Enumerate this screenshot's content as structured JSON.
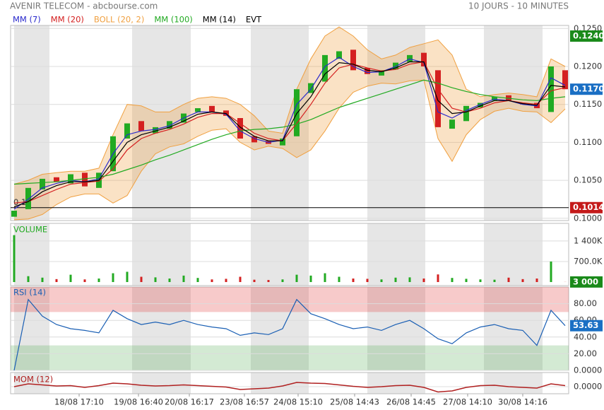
{
  "chart_data": {
    "type": "candlestick",
    "title": "AVENIR TELECOM - abcbourse.com",
    "subtitle": "10 JOURS - 10 MINUTES",
    "ylim": [
      0.0997,
      0.1254
    ],
    "yticks": [
      {
        "value": 0.125,
        "label": "0.1250"
      },
      {
        "value": 0.12,
        "label": "0.1200"
      },
      {
        "value": 0.115,
        "label": "0.1150"
      },
      {
        "value": 0.11,
        "label": "0.1100"
      },
      {
        "value": 0.105,
        "label": "0.1050"
      },
      {
        "value": 0.1,
        "label": "0.1000"
      }
    ],
    "xticks": [
      {
        "value": 4.6,
        "label": "18/08 17:10"
      },
      {
        "value": 8.8,
        "label": "19/08 16:40"
      },
      {
        "value": 12.4,
        "label": "20/08 16:17"
      },
      {
        "value": 16.3,
        "label": "23/08 16:57"
      },
      {
        "value": 20.1,
        "label": "24/08 15:10"
      },
      {
        "value": 24.1,
        "label": "25/08 14:43"
      },
      {
        "value": 28.1,
        "label": "26/08 14:45"
      },
      {
        "value": 32.1,
        "label": "27/08 14:10"
      },
      {
        "value": 36.0,
        "label": "30/08 14:16"
      }
    ],
    "up_color": "#22aa22",
    "down_color": "#d42020",
    "open": [
      0.1002,
      0.1012,
      0.1038,
      0.1054,
      0.1046,
      0.106,
      0.104,
      0.1062,
      0.1105,
      0.1128,
      0.1112,
      0.1118,
      0.1126,
      0.114,
      0.1148,
      0.1142,
      0.1132,
      0.1108,
      0.1102,
      0.1096,
      0.1108,
      0.1165,
      0.118,
      0.121,
      0.1222,
      0.1198,
      0.1188,
      0.1196,
      0.1206,
      0.1218,
      0.1195,
      0.1118,
      0.1128,
      0.1146,
      0.1155,
      0.1162,
      0.1152,
      0.1152,
      0.114,
      0.1195
    ],
    "close": [
      0.101,
      0.104,
      0.1052,
      0.1048,
      0.1058,
      0.1042,
      0.106,
      0.1108,
      0.1125,
      0.1115,
      0.112,
      0.1128,
      0.1138,
      0.1145,
      0.114,
      0.1135,
      0.1105,
      0.11,
      0.1098,
      0.1105,
      0.117,
      0.1178,
      0.1215,
      0.122,
      0.1195,
      0.119,
      0.1195,
      0.1205,
      0.1215,
      0.12,
      0.112,
      0.113,
      0.1148,
      0.1152,
      0.116,
      0.1155,
      0.115,
      0.1145,
      0.12,
      0.117
    ],
    "series": [
      {
        "name": "MM (7)",
        "color": "#2a2acc",
        "values": [
          0.1012,
          0.1025,
          0.104,
          0.1046,
          0.105,
          0.1048,
          0.1052,
          0.1085,
          0.111,
          0.1115,
          0.1117,
          0.1122,
          0.1132,
          0.114,
          0.114,
          0.1137,
          0.1115,
          0.1105,
          0.11,
          0.1103,
          0.115,
          0.117,
          0.12,
          0.1212,
          0.12,
          0.1192,
          0.1193,
          0.12,
          0.121,
          0.1205,
          0.114,
          0.1132,
          0.1142,
          0.115,
          0.1157,
          0.1155,
          0.115,
          0.1148,
          0.1185,
          0.1175
        ]
      },
      {
        "name": "MM (20)",
        "color": "#d42020",
        "values": [
          0.102,
          0.1022,
          0.103,
          0.1038,
          0.1045,
          0.1047,
          0.1049,
          0.1065,
          0.109,
          0.1105,
          0.1112,
          0.1117,
          0.1124,
          0.1133,
          0.1138,
          0.1138,
          0.1125,
          0.1112,
          0.1105,
          0.1102,
          0.1125,
          0.115,
          0.1178,
          0.1198,
          0.1203,
          0.1198,
          0.1194,
          0.1196,
          0.1203,
          0.1206,
          0.117,
          0.1145,
          0.114,
          0.1145,
          0.1152,
          0.1155,
          0.1152,
          0.115,
          0.1168,
          0.1172
        ]
      },
      {
        "name": "MM (100)",
        "color": "#22aa22",
        "values": [
          0.1045,
          0.1046,
          0.1047,
          0.1048,
          0.105,
          0.1052,
          0.1054,
          0.1058,
          0.1064,
          0.107,
          0.1077,
          0.1083,
          0.109,
          0.1097,
          0.1104,
          0.111,
          0.1115,
          0.1117,
          0.1118,
          0.112,
          0.1124,
          0.113,
          0.1138,
          0.1146,
          0.1152,
          0.1158,
          0.1164,
          0.117,
          0.1176,
          0.1182,
          0.1178,
          0.1172,
          0.1167,
          0.1163,
          0.116,
          0.1158,
          0.1156,
          0.1155,
          0.1158,
          0.116
        ]
      },
      {
        "name": "MM (14)",
        "color": "#000000",
        "values": [
          0.1015,
          0.1022,
          0.1035,
          0.1043,
          0.1048,
          0.1048,
          0.105,
          0.1075,
          0.11,
          0.111,
          0.1115,
          0.112,
          0.1128,
          0.1137,
          0.114,
          0.1138,
          0.112,
          0.1108,
          0.1102,
          0.1102,
          0.1138,
          0.116,
          0.119,
          0.1205,
          0.1203,
          0.1195,
          0.1193,
          0.1198,
          0.1206,
          0.1206,
          0.1155,
          0.1138,
          0.114,
          0.1148,
          0.1155,
          0.1155,
          0.1151,
          0.1149,
          0.1175,
          0.1173
        ]
      }
    ],
    "boll": {
      "name": "BOLL (20, 2)",
      "color": "#f0a040",
      "upper": [
        0.1045,
        0.105,
        0.1058,
        0.106,
        0.1062,
        0.1062,
        0.1066,
        0.111,
        0.115,
        0.1148,
        0.114,
        0.114,
        0.115,
        0.1158,
        0.116,
        0.1158,
        0.115,
        0.1135,
        0.1115,
        0.1112,
        0.117,
        0.121,
        0.124,
        0.1252,
        0.124,
        0.1222,
        0.121,
        0.1215,
        0.1225,
        0.123,
        0.1235,
        0.1215,
        0.117,
        0.116,
        0.1163,
        0.1165,
        0.1163,
        0.116,
        0.121,
        0.12
      ],
      "lower": [
        0.0998,
        0.0999,
        0.1005,
        0.1018,
        0.1028,
        0.1032,
        0.1032,
        0.102,
        0.103,
        0.1062,
        0.1085,
        0.1094,
        0.1098,
        0.1108,
        0.1116,
        0.1118,
        0.11,
        0.109,
        0.1095,
        0.1092,
        0.108,
        0.109,
        0.1115,
        0.1145,
        0.1166,
        0.1174,
        0.1178,
        0.1177,
        0.1181,
        0.1182,
        0.1105,
        0.1075,
        0.111,
        0.113,
        0.1141,
        0.1145,
        0.1141,
        0.114,
        0.1126,
        0.1144
      ]
    },
    "evt_label": "EVT",
    "price_marks": [
      {
        "value": 0.124,
        "label": "0.1240",
        "color": "#1a8a1a"
      },
      {
        "value": 0.117,
        "label": "0.1170",
        "color": "#1a6fc4"
      },
      {
        "value": 0.1014,
        "label": "0.1014",
        "color": "#c41a1a"
      }
    ],
    "support_line": {
      "value": 0.1014,
      "label": "0.10"
    },
    "volume": {
      "title": "VOLUME",
      "ylim": [
        0,
        2000000
      ],
      "yticks": [
        {
          "value": 1400000,
          "label": "1 400K"
        },
        {
          "value": 700000,
          "label": "700.0K"
        }
      ],
      "values": [
        1600000,
        200000,
        150000,
        100000,
        250000,
        90000,
        120000,
        300000,
        350000,
        180000,
        160000,
        120000,
        220000,
        140000,
        90000,
        110000,
        180000,
        80000,
        70000,
        90000,
        250000,
        220000,
        300000,
        180000,
        120000,
        110000,
        90000,
        150000,
        160000,
        120000,
        260000,
        140000,
        110000,
        90000,
        80000,
        150000,
        100000,
        120000,
        700000,
        3000
      ],
      "last": {
        "value": 3000,
        "label": "3 000",
        "color": "#1a8a1a"
      }
    },
    "rsi": {
      "title": "RSI (14)",
      "color": "#1a5fb4",
      "ylim": [
        0,
        100
      ],
      "overbought": 70,
      "oversold": 30,
      "yticks": [
        {
          "value": 80,
          "label": "80.00"
        },
        {
          "value": 60,
          "label": "60.00"
        },
        {
          "value": 40,
          "label": "40.00"
        },
        {
          "value": 20,
          "label": "20.00"
        },
        {
          "value": 0,
          "label": "0.0000"
        }
      ],
      "values": [
        0,
        85,
        65,
        55,
        50,
        48,
        45,
        72,
        62,
        55,
        58,
        55,
        60,
        55,
        52,
        50,
        42,
        45,
        43,
        50,
        85,
        68,
        62,
        55,
        50,
        52,
        48,
        55,
        60,
        50,
        38,
        32,
        45,
        52,
        55,
        50,
        48,
        30,
        72,
        53.63
      ],
      "last": 53.63,
      "last_color": "#1a6fc4"
    },
    "mom": {
      "title": "MOM (12)",
      "color": "#b02020",
      "ylim": [
        -0.002,
        0.004
      ],
      "yticks": [
        {
          "value": 0,
          "label": "0.0000"
        }
      ],
      "values": [
        0,
        0.0008,
        0.0005,
        0.0002,
        0.0003,
        -0.0002,
        0.0003,
        0.001,
        0.0008,
        0.0004,
        0.0002,
        0.0003,
        0.0005,
        0.0003,
        0.0001,
        -0.0001,
        -0.0008,
        -0.0006,
        -0.0004,
        0.0002,
        0.0012,
        0.001,
        0.0009,
        0.0005,
        0.0001,
        -0.0002,
        0,
        0.0003,
        0.0004,
        -0.0002,
        -0.0015,
        -0.0012,
        -0.0002,
        0.0003,
        0.0004,
        0,
        -0.0002,
        -0.0004,
        0.0008,
        0.0003
      ]
    }
  }
}
